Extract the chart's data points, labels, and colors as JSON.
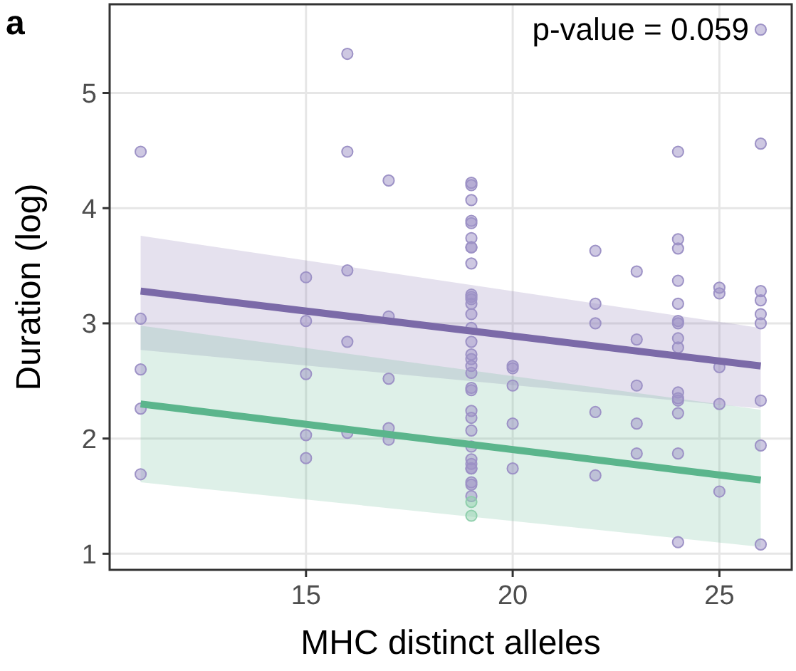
{
  "chart_data": {
    "type": "scatter",
    "title": "a",
    "xlabel": "MHC distinct alleles",
    "ylabel": "Duration (log)",
    "annotations": [
      "p-value = 0.059"
    ],
    "xlim": [
      10.25,
      26.75
    ],
    "xticks": [
      15,
      20,
      25
    ],
    "ylim": [
      0.86,
      5.77
    ],
    "yticks": [
      1,
      2,
      3,
      4,
      5
    ],
    "grid": true,
    "series": [
      {
        "marker": "circle",
        "color": "#9d92c6",
        "x": [
          16,
          11,
          16,
          17,
          15,
          16,
          11,
          15,
          17,
          16,
          11,
          15,
          17,
          11,
          15,
          16,
          17,
          17,
          15,
          11,
          19,
          19,
          19,
          19,
          19,
          19,
          19,
          19,
          19,
          19,
          19,
          19,
          19,
          19,
          19,
          19,
          19,
          19,
          19,
          19,
          19,
          19,
          19,
          19,
          19,
          19,
          19,
          19,
          19,
          19,
          19,
          19,
          19,
          20,
          20,
          20,
          20,
          20,
          22,
          22,
          22,
          22,
          22,
          23,
          23,
          23,
          23,
          23,
          24,
          24,
          24,
          24,
          24,
          24,
          24,
          24,
          24,
          24,
          24,
          24,
          24,
          24,
          24,
          25,
          25,
          25,
          25,
          25,
          26,
          26,
          26,
          26,
          26,
          26,
          26,
          26,
          26
        ],
        "values": [
          5.34,
          4.49,
          4.49,
          4.24,
          3.4,
          3.46,
          3.04,
          3.02,
          3.06,
          2.84,
          2.6,
          2.56,
          2.52,
          2.26,
          2.03,
          2.05,
          2.09,
          1.99,
          1.83,
          1.69,
          4.22,
          4.2,
          4.07,
          3.89,
          3.87,
          3.74,
          3.66,
          3.66,
          3.52,
          3.25,
          3.23,
          3.21,
          3.17,
          3.08,
          2.96,
          2.84,
          2.73,
          2.69,
          2.63,
          2.57,
          2.44,
          2.42,
          2.24,
          2.18,
          2.07,
          1.93,
          1.82,
          1.78,
          1.74,
          1.62,
          1.6,
          1.5,
          1.74,
          2.63,
          2.61,
          2.46,
          2.13,
          1.74,
          3.63,
          3.17,
          3.0,
          2.23,
          1.68,
          3.45,
          2.86,
          2.46,
          2.13,
          1.87,
          4.49,
          3.73,
          3.65,
          3.37,
          3.17,
          3.02,
          3.0,
          2.87,
          2.79,
          2.4,
          2.35,
          2.33,
          2.22,
          1.87,
          1.1,
          3.31,
          3.26,
          2.62,
          2.3,
          1.54,
          5.55,
          4.56,
          3.28,
          3.2,
          3.08,
          3.0,
          2.33,
          1.94,
          1.08
        ]
      },
      {
        "marker": "circle",
        "color": "#8fcfac",
        "x": [
          19,
          19
        ],
        "values": [
          1.45,
          1.33
        ]
      },
      {
        "type": "line",
        "color": "#7b6aa8",
        "x": [
          11,
          26
        ],
        "values": [
          3.28,
          2.63
        ],
        "lower": [
          2.77,
          2.26
        ],
        "upper": [
          3.76,
          2.96
        ]
      },
      {
        "type": "line",
        "color": "#5bb58c",
        "x": [
          11,
          26
        ],
        "values": [
          2.3,
          1.64
        ],
        "lower": [
          1.62,
          1.06
        ],
        "upper": [
          2.98,
          2.25
        ]
      }
    ]
  }
}
